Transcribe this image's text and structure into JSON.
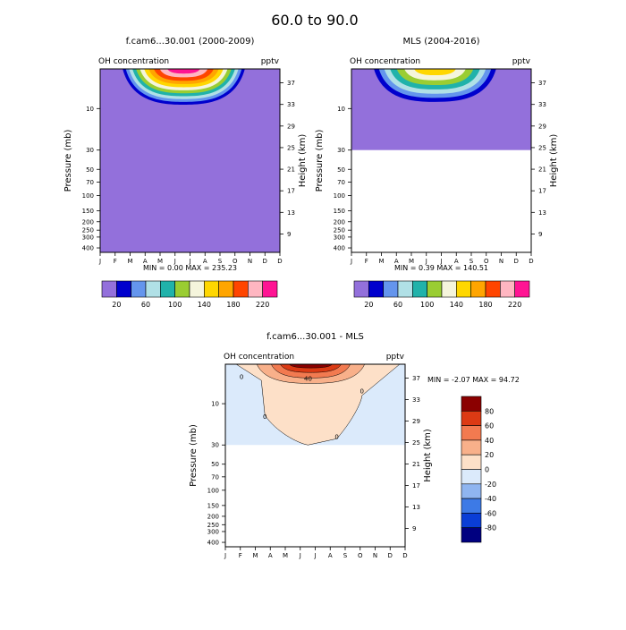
{
  "figure_title": "60.0 to  90.0",
  "chart_data": [
    {
      "type": "heatmap",
      "title": "f.cam6...30.001 (2000-2009)",
      "field_label": "OH concentration",
      "units": "pptv",
      "ylabel_left": "Pressure (mb)",
      "ylabel_right": "Height (km)",
      "x_ticks": [
        "J",
        "F",
        "M",
        "A",
        "M",
        "J",
        "J",
        "A",
        "S",
        "O",
        "N",
        "D"
      ],
      "pressure_ticks": [
        "10",
        "30",
        "50",
        "70",
        "100",
        "150",
        "200",
        "250",
        "300",
        "400"
      ],
      "height_ticks": [
        "37",
        "33",
        "29",
        "25",
        "21",
        "17",
        "13",
        "9"
      ],
      "y_scale": "log pressure",
      "min_max_text": "MIN =   0.00  MAX = 235.23",
      "data_floor_mb": 450,
      "contour_levels": [
        20,
        40,
        60,
        80,
        100,
        120,
        140,
        160,
        180,
        200,
        220
      ],
      "peak_value": 235.23,
      "peak_month": "J",
      "colorbar": {
        "labels": [
          "20",
          "60",
          "100",
          "140",
          "180",
          "220"
        ],
        "colors": [
          "#9370db",
          "#0000cd",
          "#6495ed",
          "#b0e0e6",
          "#20b2aa",
          "#9acd32",
          "#f5f5dc",
          "#ffd700",
          "#ffa500",
          "#ff4500",
          "#ffb6c1",
          "#ff1493"
        ]
      }
    },
    {
      "type": "heatmap",
      "title": "MLS (2004-2016)",
      "field_label": "OH concentration",
      "units": "pptv",
      "ylabel_left": "Pressure (mb)",
      "ylabel_right": "Height (km)",
      "x_ticks": [
        "J",
        "F",
        "M",
        "A",
        "M",
        "J",
        "J",
        "A",
        "S",
        "O",
        "N",
        "D"
      ],
      "pressure_ticks": [
        "10",
        "30",
        "50",
        "70",
        "100",
        "150",
        "200",
        "250",
        "300",
        "400"
      ],
      "height_ticks": [
        "37",
        "33",
        "29",
        "25",
        "21",
        "17",
        "13",
        "9"
      ],
      "y_scale": "log pressure",
      "min_max_text": "MIN =   0.39  MAX = 140.51",
      "data_floor_mb": 30,
      "contour_levels": [
        20,
        40,
        60,
        80,
        100,
        120,
        140
      ],
      "peak_value": 140.51,
      "peak_month": "J",
      "colorbar": {
        "labels": [
          "20",
          "60",
          "100",
          "140",
          "180",
          "220"
        ],
        "colors": [
          "#9370db",
          "#0000cd",
          "#6495ed",
          "#b0e0e6",
          "#20b2aa",
          "#9acd32",
          "#f5f5dc",
          "#ffd700",
          "#ffa500",
          "#ff4500",
          "#ffb6c1",
          "#ff1493"
        ]
      }
    },
    {
      "type": "heatmap",
      "title": "f.cam6...30.001 - MLS",
      "field_label": "OH concentration",
      "units": "pptv",
      "ylabel_left": "Pressure (mb)",
      "ylabel_right": "Height (km)",
      "x_ticks": [
        "J",
        "F",
        "M",
        "A",
        "M",
        "J",
        "J",
        "A",
        "S",
        "O",
        "N",
        "D"
      ],
      "pressure_ticks": [
        "10",
        "30",
        "50",
        "70",
        "100",
        "150",
        "200",
        "250",
        "300",
        "400"
      ],
      "height_ticks": [
        "37",
        "33",
        "29",
        "25",
        "21",
        "17",
        "13",
        "9"
      ],
      "y_scale": "log pressure",
      "min_max_text": "MIN =  -2.07  MAX =  94.72",
      "data_floor_mb": 30,
      "contour_levels": [
        -80,
        -60,
        -40,
        -20,
        0,
        20,
        40,
        60,
        80
      ],
      "contour_line_labels": [
        "0",
        "0",
        "0",
        "0",
        "40"
      ],
      "peak_value": 94.72,
      "peak_month": "J",
      "colorbar": {
        "orientation": "vertical",
        "labels": [
          "80",
          "60",
          "40",
          "20",
          "0",
          "-20",
          "-40",
          "-60",
          "-80"
        ],
        "colors": [
          "#8b0000",
          "#dc3a14",
          "#f27a50",
          "#f8b08a",
          "#fde0c8",
          "#dbeafb",
          "#8fb5f0",
          "#3d7ae6",
          "#0a3ed6",
          "#000080"
        ]
      }
    }
  ]
}
